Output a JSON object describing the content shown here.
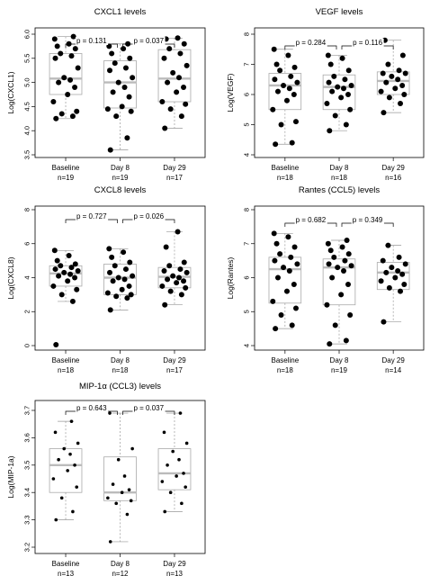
{
  "chart_data": [
    {
      "type": "boxplot",
      "title": "CXCL1 levels",
      "ylabel": "Log(CXCL1)",
      "ylim": [
        3.5,
        6.2
      ],
      "yticks": [
        "3.5",
        "4.0",
        "4.5",
        "5.0",
        "5.5",
        "6.0"
      ],
      "categories": [
        "Baseline",
        "Day 8",
        "Day 29"
      ],
      "n_labels": [
        "n=19",
        "n=19",
        "n=17"
      ],
      "pvalues": [
        "p = 0.131",
        "p = 0.037"
      ],
      "series": [
        {
          "values": [
            4.25,
            4.3,
            4.35,
            4.4,
            4.6,
            4.75,
            4.9,
            5.0,
            5.05,
            5.1,
            5.3,
            5.5,
            5.55,
            5.6,
            5.7,
            5.75,
            5.8,
            5.9,
            5.95
          ],
          "box": {
            "min": 4.25,
            "q1": 4.75,
            "median": 5.08,
            "q3": 5.6,
            "max": 5.95
          }
        },
        {
          "values": [
            3.6,
            3.85,
            4.3,
            4.4,
            4.45,
            4.5,
            4.7,
            4.8,
            4.9,
            5.0,
            5.1,
            5.25,
            5.3,
            5.4,
            5.5,
            5.6,
            5.7,
            5.75,
            5.8
          ],
          "box": {
            "min": 3.6,
            "q1": 4.47,
            "median": 5.0,
            "q3": 5.45,
            "max": 5.8
          }
        },
        {
          "values": [
            4.05,
            4.3,
            4.45,
            4.55,
            4.6,
            4.8,
            4.9,
            5.0,
            5.1,
            5.2,
            5.35,
            5.5,
            5.6,
            5.7,
            5.8,
            5.9,
            5.92
          ],
          "box": {
            "min": 4.05,
            "q1": 4.6,
            "median": 5.08,
            "q3": 5.68,
            "max": 5.92
          }
        }
      ]
    },
    {
      "type": "boxplot",
      "title": "VEGF levels",
      "ylabel": "Log(VEGF)",
      "ylim": [
        4,
        8.5
      ],
      "yticks": [
        "4",
        "5",
        "6",
        "7",
        "8"
      ],
      "categories": [
        "Baseline",
        "Day 8",
        "Day 29"
      ],
      "n_labels": [
        "n=18",
        "n=18",
        "n=16"
      ],
      "pvalues": [
        "p = 0.284",
        "p = 0.116"
      ],
      "series": [
        {
          "values": [
            4.35,
            4.4,
            5.0,
            5.1,
            5.5,
            5.8,
            6.0,
            6.1,
            6.2,
            6.3,
            6.4,
            6.5,
            6.6,
            6.8,
            6.9,
            7.0,
            7.3,
            7.5
          ],
          "box": {
            "min": 4.35,
            "q1": 5.5,
            "median": 6.3,
            "q3": 6.7,
            "max": 7.5
          }
        },
        {
          "values": [
            4.8,
            5.0,
            5.3,
            5.5,
            5.7,
            5.9,
            6.0,
            6.1,
            6.2,
            6.25,
            6.3,
            6.4,
            6.5,
            6.6,
            6.8,
            7.0,
            7.2,
            7.3
          ],
          "box": {
            "min": 4.8,
            "q1": 5.5,
            "median": 6.25,
            "q3": 6.65,
            "max": 7.3
          }
        },
        {
          "values": [
            5.4,
            5.7,
            5.9,
            6.0,
            6.1,
            6.2,
            6.3,
            6.4,
            6.5,
            6.6,
            6.7,
            6.7,
            6.8,
            7.0,
            7.3,
            7.8
          ],
          "box": {
            "min": 5.4,
            "q1": 6.0,
            "median": 6.45,
            "q3": 6.75,
            "max": 7.8
          }
        }
      ]
    },
    {
      "type": "boxplot",
      "title": "CXCL8 levels",
      "ylabel": "Log(CXCL8)",
      "ylim": [
        0,
        8
      ],
      "yticks": [
        "0",
        "2",
        "4",
        "6",
        "8"
      ],
      "categories": [
        "Baseline",
        "Day 8",
        "Day 29"
      ],
      "n_labels": [
        "n=18",
        "n=18",
        "n=17"
      ],
      "pvalues": [
        "p = 0.727",
        "p = 0.026"
      ],
      "series": [
        {
          "values": [
            0.05,
            2.6,
            3.0,
            3.3,
            3.5,
            3.8,
            4.0,
            4.1,
            4.2,
            4.3,
            4.4,
            4.5,
            4.6,
            4.7,
            4.8,
            5.0,
            5.3,
            5.6
          ],
          "box": {
            "min": 2.6,
            "q1": 3.5,
            "median": 4.25,
            "q3": 4.7,
            "max": 5.6
          }
        },
        {
          "values": [
            2.1,
            2.8,
            2.9,
            3.0,
            3.1,
            3.3,
            3.5,
            3.8,
            3.9,
            4.0,
            4.1,
            4.3,
            4.5,
            4.7,
            4.9,
            5.2,
            5.5,
            5.7
          ],
          "box": {
            "min": 2.1,
            "q1": 3.0,
            "median": 4.0,
            "q3": 4.8,
            "max": 5.7
          }
        },
        {
          "values": [
            2.4,
            3.0,
            3.2,
            3.4,
            3.5,
            3.7,
            3.8,
            3.9,
            4.0,
            4.1,
            4.3,
            4.4,
            4.5,
            4.7,
            4.9,
            5.8,
            6.7
          ],
          "box": {
            "min": 2.4,
            "q1": 3.4,
            "median": 4.05,
            "q3": 4.6,
            "max": 6.7
          }
        }
      ]
    },
    {
      "type": "boxplot",
      "title": "Rantes (CCL5) levels",
      "ylabel": "Log(Rantes)",
      "ylim": [
        4,
        8
      ],
      "yticks": [
        "4",
        "5",
        "6",
        "7",
        "8"
      ],
      "categories": [
        "Baseline",
        "Day 8",
        "Day 29"
      ],
      "n_labels": [
        "n=18",
        "n=19",
        "n=14"
      ],
      "pvalues": [
        "p = 0.682",
        "p = 0.349"
      ],
      "series": [
        {
          "values": [
            4.5,
            4.6,
            4.9,
            5.1,
            5.3,
            5.6,
            5.8,
            6.0,
            6.2,
            6.3,
            6.4,
            6.5,
            6.6,
            6.7,
            6.9,
            7.0,
            7.2,
            7.3
          ],
          "box": {
            "min": 4.5,
            "q1": 5.25,
            "median": 6.25,
            "q3": 6.6,
            "max": 7.3
          }
        },
        {
          "values": [
            4.05,
            4.15,
            4.6,
            4.9,
            5.2,
            5.5,
            5.8,
            6.0,
            6.2,
            6.3,
            6.35,
            6.4,
            6.5,
            6.6,
            6.7,
            6.8,
            6.9,
            7.0,
            7.1
          ],
          "box": {
            "min": 4.05,
            "q1": 5.2,
            "median": 6.3,
            "q3": 6.55,
            "max": 7.1
          }
        },
        {
          "values": [
            4.7,
            5.6,
            5.7,
            5.8,
            5.9,
            6.0,
            6.1,
            6.15,
            6.2,
            6.3,
            6.4,
            6.5,
            6.6,
            6.95
          ],
          "box": {
            "min": 4.7,
            "q1": 5.65,
            "median": 6.15,
            "q3": 6.45,
            "max": 6.95
          }
        }
      ]
    },
    {
      "type": "boxplot",
      "title": "MIP-1α (CCL3) levels",
      "ylabel": "Log(MIP-1a)",
      "ylim": [
        3.2,
        3.73
      ],
      "yticks": [
        "3.2",
        "3.3",
        "3.4",
        "3.5",
        "3.6",
        "3.7"
      ],
      "categories": [
        "Baseline",
        "Day 8",
        "Day 29"
      ],
      "n_labels": [
        "n=13",
        "n=12",
        "n=13"
      ],
      "pvalues": [
        "p = 0.643",
        "p = 0.037"
      ],
      "series": [
        {
          "values": [
            3.3,
            3.33,
            3.38,
            3.42,
            3.45,
            3.48,
            3.5,
            3.52,
            3.54,
            3.56,
            3.58,
            3.62,
            3.66
          ],
          "box": {
            "min": 3.3,
            "q1": 3.4,
            "median": 3.5,
            "q3": 3.56,
            "max": 3.66
          }
        },
        {
          "values": [
            3.22,
            3.32,
            3.36,
            3.37,
            3.38,
            3.4,
            3.41,
            3.43,
            3.46,
            3.52,
            3.56,
            3.69
          ],
          "box": {
            "min": 3.22,
            "q1": 3.37,
            "median": 3.4,
            "q3": 3.53,
            "max": 3.69
          }
        },
        {
          "values": [
            3.33,
            3.36,
            3.4,
            3.42,
            3.44,
            3.46,
            3.47,
            3.5,
            3.52,
            3.55,
            3.58,
            3.62,
            3.69
          ],
          "box": {
            "min": 3.33,
            "q1": 3.41,
            "median": 3.47,
            "q3": 3.56,
            "max": 3.69
          }
        }
      ]
    }
  ]
}
